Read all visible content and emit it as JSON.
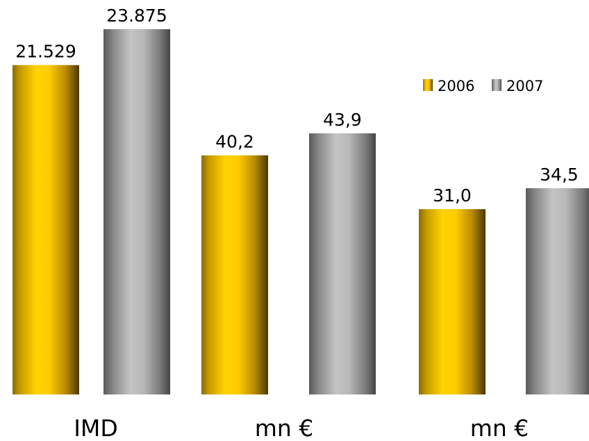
{
  "chart_data": {
    "type": "bar",
    "categories": [
      "IMD",
      "mn €",
      "mn €"
    ],
    "series": [
      {
        "name": "2006",
        "color": "#ffcc00",
        "values": [
          21.529,
          40.2,
          31.0
        ],
        "display": [
          "21.529",
          "40,2",
          "31,0"
        ]
      },
      {
        "name": "2007",
        "color": "#b4b4b4",
        "values": [
          23.875,
          43.9,
          34.5
        ],
        "display": [
          "23.875",
          "43,9",
          "34,5"
        ]
      }
    ],
    "legend": {
      "position": "top-right",
      "items": [
        "2006",
        "2007"
      ]
    },
    "grid": false,
    "title": "",
    "xlabel": "",
    "ylabel": ""
  }
}
